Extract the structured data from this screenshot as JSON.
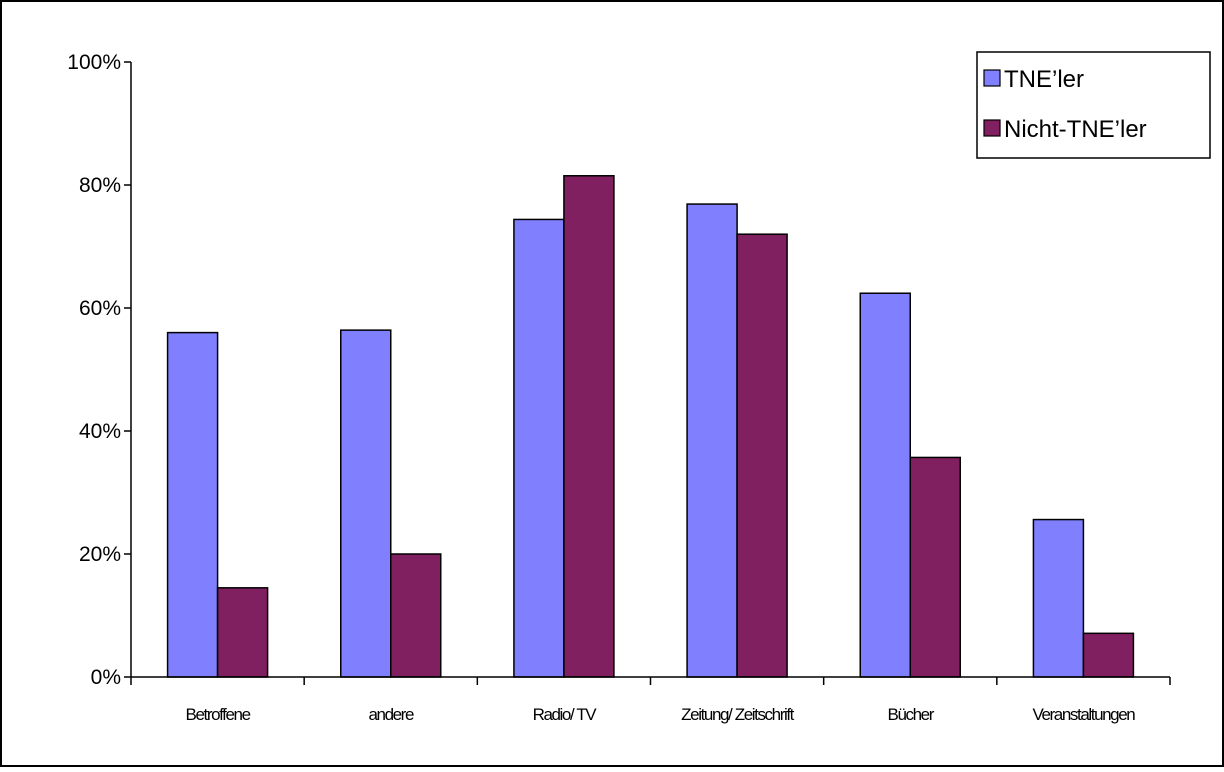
{
  "chart_data": {
    "type": "bar",
    "categories": [
      "Betroffene",
      "andere",
      "Radio/ TV",
      "Zeitung/ Zeitschrift",
      "Bücher",
      "Veranstaltungen"
    ],
    "series": [
      {
        "name": "TNE’ler",
        "values": [
          56,
          56.4,
          74.4,
          76.9,
          62.4,
          25.6
        ],
        "color": "#8080ff"
      },
      {
        "name": "Nicht-TNE’ler",
        "values": [
          14.5,
          20,
          81.5,
          72,
          35.7,
          7.1
        ],
        "color": "#812060"
      }
    ],
    "yticks": [
      "0%",
      "20%",
      "40%",
      "60%",
      "80%",
      "100%"
    ],
    "ylim": [
      0,
      100
    ],
    "grid": false,
    "legend_position": "top-right"
  }
}
